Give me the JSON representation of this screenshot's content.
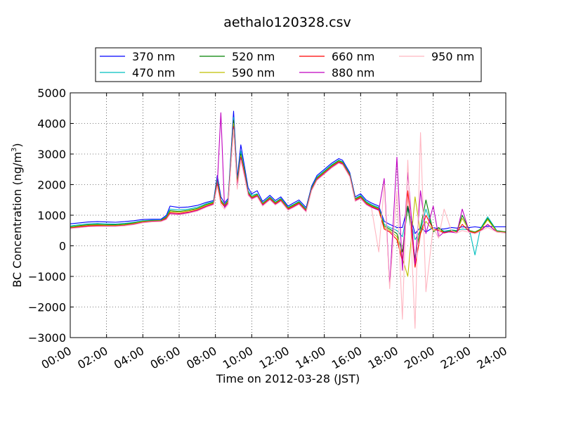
{
  "chart_data": {
    "type": "line",
    "title": "aethalo120328.csv",
    "xlabel": "Time on 2012-03-28 (JST)",
    "ylabel_main": "BC Concentration (ng/m",
    "ylabel_sup": "3",
    "ylabel_tail": ")",
    "xlim": [
      "00:00",
      "24:00"
    ],
    "ylim": [
      -3000,
      5000
    ],
    "x_ticks": [
      "00:00",
      "02:00",
      "04:00",
      "06:00",
      "08:00",
      "10:00",
      "12:00",
      "14:00",
      "16:00",
      "18:00",
      "20:00",
      "22:00",
      "24:00"
    ],
    "y_ticks": [
      -3000,
      -2000,
      -1000,
      0,
      1000,
      2000,
      3000,
      4000,
      5000
    ],
    "grid": true,
    "legend_placement": "top, above plot",
    "series": [
      {
        "name": "370 nm",
        "color": "#0000ff",
        "x": [
          0,
          0.5,
          1,
          1.5,
          2,
          2.5,
          3,
          3.5,
          4,
          4.5,
          5,
          5.3,
          5.5,
          6,
          6.5,
          7,
          7.5,
          7.9,
          8.1,
          8.3,
          8.5,
          8.7,
          9,
          9.2,
          9.4,
          9.6,
          9.8,
          10,
          10.3,
          10.6,
          11,
          11.3,
          11.6,
          12,
          12.3,
          12.6,
          13,
          13.3,
          13.6,
          14,
          14.4,
          14.8,
          15,
          15.4,
          15.7,
          16,
          16.3,
          16.6,
          17,
          17.3,
          17.6,
          18,
          18.3,
          18.6,
          19,
          19.3,
          19.6,
          20,
          20.3,
          20.6,
          21,
          21.3,
          21.6,
          22,
          22.3,
          22.6,
          23,
          23.5,
          24
        ],
        "y": [
          720,
          750,
          780,
          790,
          780,
          770,
          790,
          820,
          860,
          870,
          870,
          1000,
          1300,
          1250,
          1270,
          1320,
          1420,
          1480,
          2300,
          1600,
          1400,
          1550,
          4400,
          2200,
          3300,
          2600,
          1900,
          1700,
          1800,
          1450,
          1650,
          1480,
          1600,
          1300,
          1400,
          1500,
          1250,
          1950,
          2300,
          2500,
          2700,
          2850,
          2800,
          2400,
          1600,
          1700,
          1500,
          1400,
          1300,
          800,
          700,
          600,
          600,
          1300,
          400,
          600,
          450,
          600,
          550,
          550,
          600,
          580,
          620,
          600,
          620,
          600,
          640,
          620,
          620
        ]
      },
      {
        "name": "470 nm",
        "color": "#00bfbf",
        "x": [
          0,
          0.5,
          1,
          1.5,
          2,
          2.5,
          3,
          3.5,
          4,
          4.5,
          5,
          5.3,
          5.5,
          6,
          6.5,
          7,
          7.5,
          7.9,
          8.1,
          8.3,
          8.5,
          8.7,
          9,
          9.2,
          9.4,
          9.6,
          9.8,
          10,
          10.3,
          10.6,
          11,
          11.3,
          11.6,
          12,
          12.3,
          12.6,
          13,
          13.3,
          13.6,
          14,
          14.4,
          14.8,
          15,
          15.4,
          15.7,
          16,
          16.3,
          16.6,
          17,
          17.3,
          17.6,
          18,
          18.3,
          18.6,
          19,
          19.3,
          19.6,
          20,
          20.3,
          20.6,
          21,
          21.3,
          21.6,
          22,
          22.3,
          22.6,
          23,
          23.5,
          24
        ],
        "y": [
          650,
          690,
          720,
          730,
          720,
          710,
          730,
          770,
          820,
          840,
          840,
          960,
          1200,
          1170,
          1200,
          1260,
          1380,
          1450,
          2200,
          1500,
          1350,
          1500,
          4200,
          2100,
          3100,
          2500,
          1800,
          1650,
          1700,
          1400,
          1600,
          1430,
          1550,
          1260,
          1350,
          1450,
          1200,
          1900,
          2250,
          2450,
          2650,
          2800,
          2750,
          2350,
          1550,
          1650,
          1450,
          1350,
          1250,
          700,
          600,
          500,
          300,
          1200,
          200,
          500,
          1200,
          500,
          550,
          480,
          520,
          500,
          550,
          520,
          -300,
          560,
          950,
          500,
          450
        ]
      },
      {
        "name": "520 nm",
        "color": "#008000",
        "x": [
          0,
          0.5,
          1,
          1.5,
          2,
          2.5,
          3,
          3.5,
          4,
          4.5,
          5,
          5.3,
          5.5,
          6,
          6.5,
          7,
          7.5,
          7.9,
          8.1,
          8.3,
          8.5,
          8.7,
          9,
          9.2,
          9.4,
          9.6,
          9.8,
          10,
          10.3,
          10.6,
          11,
          11.3,
          11.6,
          12,
          12.3,
          12.6,
          13,
          13.3,
          13.6,
          14,
          14.4,
          14.8,
          15,
          15.4,
          15.7,
          16,
          16.3,
          16.6,
          17,
          17.3,
          17.6,
          18,
          18.3,
          18.6,
          19,
          19.3,
          19.6,
          20,
          20.3,
          20.6,
          21,
          21.3,
          21.6,
          22,
          22.3,
          22.6,
          23,
          23.5,
          24
        ],
        "y": [
          620,
          660,
          690,
          700,
          690,
          690,
          710,
          750,
          800,
          820,
          830,
          940,
          1150,
          1120,
          1160,
          1220,
          1350,
          1420,
          2150,
          1480,
          1320,
          1480,
          4100,
          2050,
          3000,
          2450,
          1750,
          1600,
          1680,
          1380,
          1580,
          1410,
          1530,
          1240,
          1330,
          1430,
          1180,
          1880,
          2220,
          2420,
          2620,
          2780,
          2730,
          2330,
          1530,
          1620,
          1420,
          1320,
          1220,
          650,
          550,
          400,
          -200,
          1300,
          -400,
          600,
          1500,
          450,
          600,
          450,
          500,
          480,
          1000,
          500,
          450,
          540,
          900,
          480,
          460
        ]
      },
      {
        "name": "590 nm",
        "color": "#bfbf00",
        "x": [
          0,
          0.5,
          1,
          1.5,
          2,
          2.5,
          3,
          3.5,
          4,
          4.5,
          5,
          5.3,
          5.5,
          6,
          6.5,
          7,
          7.5,
          7.9,
          8.1,
          8.3,
          8.5,
          8.7,
          9,
          9.2,
          9.4,
          9.6,
          9.8,
          10,
          10.3,
          10.6,
          11,
          11.3,
          11.6,
          12,
          12.3,
          12.6,
          13,
          13.3,
          13.6,
          14,
          14.4,
          14.8,
          15,
          15.4,
          15.7,
          16,
          16.3,
          16.6,
          17,
          17.3,
          17.6,
          18,
          18.3,
          18.6,
          19,
          19.3,
          19.6,
          20,
          20.3,
          20.6,
          21,
          21.3,
          21.6,
          22,
          22.3,
          22.6,
          23,
          23.5,
          24
        ],
        "y": [
          600,
          640,
          670,
          680,
          670,
          670,
          690,
          730,
          790,
          810,
          820,
          920,
          1120,
          1100,
          1140,
          1200,
          1330,
          1400,
          2100,
          1450,
          1300,
          1450,
          4000,
          2000,
          2950,
          2400,
          1720,
          1580,
          1660,
          1360,
          1560,
          1390,
          1510,
          1220,
          1310,
          1410,
          1160,
          1860,
          2200,
          2400,
          2600,
          2760,
          2710,
          2310,
          1510,
          1600,
          1400,
          1300,
          1200,
          600,
          500,
          300,
          -400,
          -1000,
          1600,
          400,
          800,
          500,
          550,
          430,
          480,
          460,
          900,
          480,
          430,
          520,
          850,
          470,
          440
        ]
      },
      {
        "name": "660 nm",
        "color": "#ff0000",
        "x": [
          0,
          0.5,
          1,
          1.5,
          2,
          2.5,
          3,
          3.5,
          4,
          4.5,
          5,
          5.3,
          5.5,
          6,
          6.5,
          7,
          7.5,
          7.9,
          8.1,
          8.3,
          8.5,
          8.7,
          9,
          9.2,
          9.4,
          9.6,
          9.8,
          10,
          10.3,
          10.6,
          11,
          11.3,
          11.6,
          12,
          12.3,
          12.6,
          13,
          13.3,
          13.6,
          14,
          14.4,
          14.8,
          15,
          15.4,
          15.7,
          16,
          16.3,
          16.6,
          17,
          17.3,
          17.6,
          18,
          18.3,
          18.6,
          19,
          19.3,
          19.6,
          20,
          20.3,
          20.6,
          21,
          21.3,
          21.6,
          22,
          22.3,
          22.6,
          23,
          23.5,
          24
        ],
        "y": [
          580,
          620,
          650,
          660,
          650,
          650,
          670,
          710,
          770,
          800,
          810,
          900,
          1080,
          1060,
          1100,
          1170,
          1300,
          1380,
          2050,
          1420,
          1280,
          1420,
          3900,
          1950,
          2900,
          2350,
          1700,
          1560,
          1640,
          1340,
          1540,
          1370,
          1490,
          1200,
          1290,
          1390,
          1140,
          1840,
          2180,
          2380,
          2580,
          2740,
          2690,
          2290,
          1490,
          1580,
          1380,
          1280,
          1180,
          550,
          450,
          200,
          -500,
          1800,
          -700,
          400,
          1000,
          550,
          500,
          420,
          470,
          440,
          700,
          460,
          420,
          500,
          700,
          460,
          430
        ]
      },
      {
        "name": "880 nm",
        "color": "#bf00bf",
        "x": [
          0,
          0.5,
          1,
          1.5,
          2,
          2.5,
          3,
          3.5,
          4,
          4.5,
          5,
          5.3,
          5.5,
          6,
          6.5,
          7,
          7.5,
          7.9,
          8.1,
          8.3,
          8.5,
          8.7,
          9,
          9.2,
          9.4,
          9.6,
          9.8,
          10,
          10.3,
          10.6,
          11,
          11.3,
          11.6,
          12,
          12.3,
          12.6,
          13,
          13.3,
          13.6,
          14,
          14.4,
          14.8,
          15,
          15.4,
          15.7,
          16,
          16.3,
          16.6,
          17,
          17.3,
          17.6,
          18,
          18.3,
          18.6,
          19,
          19.3,
          19.6,
          20,
          20.3,
          20.6,
          21,
          21.3,
          21.6,
          22,
          22.3,
          22.6,
          23,
          23.5,
          24
        ],
        "y": [
          570,
          600,
          630,
          640,
          640,
          640,
          660,
          700,
          760,
          790,
          800,
          880,
          1050,
          1030,
          1080,
          1150,
          1280,
          1360,
          2000,
          4350,
          1250,
          1400,
          3850,
          1900,
          2850,
          2300,
          1680,
          1540,
          1620,
          1320,
          1520,
          1350,
          1470,
          1180,
          1270,
          1370,
          1120,
          1820,
          2160,
          2360,
          2560,
          2720,
          2670,
          2270,
          1470,
          1560,
          1360,
          1260,
          1160,
          2200,
          -1300,
          2900,
          -800,
          2400,
          -600,
          1800,
          400,
          1300,
          300,
          450,
          450,
          420,
          1200,
          440,
          400,
          480,
          700,
          450,
          420
        ]
      },
      {
        "name": "950 nm",
        "color": "#ffb6c1",
        "x": [
          0,
          0.5,
          1,
          1.5,
          2,
          2.5,
          3,
          3.5,
          4,
          4.5,
          5,
          5.3,
          5.5,
          6,
          6.5,
          7,
          7.5,
          7.9,
          8.1,
          8.3,
          8.5,
          8.7,
          9,
          9.2,
          9.4,
          9.6,
          9.8,
          10,
          10.3,
          10.6,
          11,
          11.3,
          11.6,
          12,
          12.3,
          12.6,
          13,
          13.3,
          13.6,
          14,
          14.4,
          14.8,
          15,
          15.4,
          15.7,
          16,
          16.3,
          16.6,
          17,
          17.3,
          17.6,
          18,
          18.3,
          18.6,
          19,
          19.3,
          19.6,
          20,
          20.3,
          20.6,
          21,
          21.3,
          21.6,
          22,
          22.3,
          22.6,
          23,
          23.5,
          24
        ],
        "y": [
          560,
          590,
          620,
          630,
          630,
          630,
          650,
          690,
          750,
          780,
          790,
          860,
          1030,
          1010,
          1060,
          1130,
          1260,
          1340,
          1950,
          1350,
          1200,
          1350,
          3800,
          1850,
          2800,
          2250,
          1650,
          1520,
          1600,
          1300,
          1500,
          1330,
          1450,
          1160,
          1250,
          1350,
          1100,
          1800,
          2140,
          2340,
          2540,
          2700,
          2650,
          2250,
          1450,
          1540,
          1340,
          1240,
          -200,
          2000,
          -1400,
          1800,
          -2400,
          2800,
          -2700,
          3700,
          -1500,
          600,
          250,
          1200,
          500,
          420,
          500,
          440,
          400,
          480,
          600,
          450,
          420
        ]
      }
    ]
  }
}
